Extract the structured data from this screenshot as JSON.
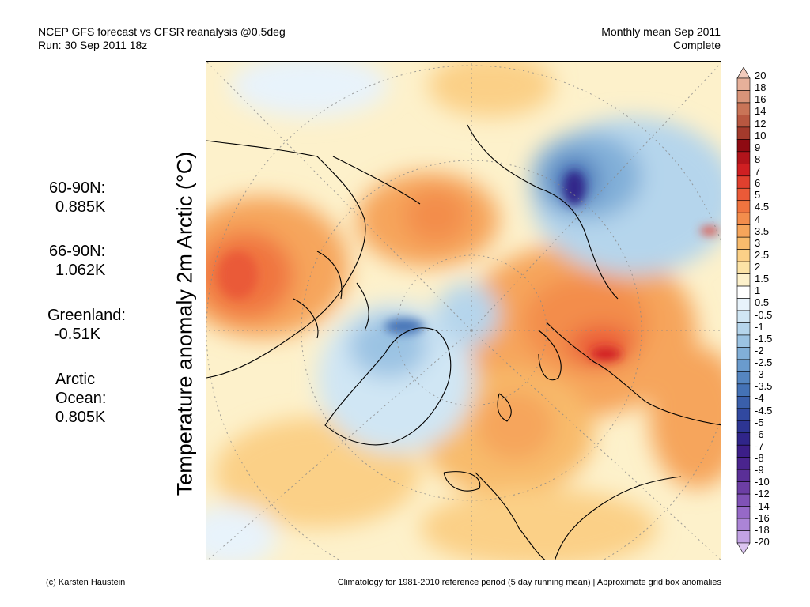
{
  "header": {
    "line1_left": "NCEP GFS forecast vs CFSR reanalysis @0.5deg",
    "line2_left": "Run: 30 Sep 2011 18z",
    "line1_right": "Monthly mean Sep 2011",
    "line2_right": "Complete"
  },
  "y_axis_label": "Temperature anomaly 2m Arctic (°C)",
  "stats": [
    {
      "label": "60-90N:",
      "value": "0.885K"
    },
    {
      "label": "66-90N:",
      "value": "1.062K"
    },
    {
      "label": "Greenland:",
      "value": "-0.51K"
    },
    {
      "label_line1": "Arctic",
      "label_line2": "Ocean:",
      "value": "0.805K"
    }
  ],
  "colorbar": {
    "labels": [
      "20",
      "18",
      "16",
      "14",
      "12",
      "10",
      "9",
      "8",
      "7",
      "6",
      "5",
      "4.5",
      "4",
      "3.5",
      "3",
      "2.5",
      "2",
      "1.5",
      "1",
      "0.5",
      "-0.5",
      "-1",
      "-1.5",
      "-2",
      "-2.5",
      "-3",
      "-3.5",
      "-4",
      "-4.5",
      "-5",
      "-6",
      "-7",
      "-8",
      "-9",
      "-10",
      "-12",
      "-14",
      "-16",
      "-18",
      "-20"
    ],
    "colors": [
      "#f2cbbc",
      "#e6b09a",
      "#d99479",
      "#c97457",
      "#b85740",
      "#a33a2c",
      "#8e0a12",
      "#b1141b",
      "#cf1f22",
      "#e0402e",
      "#ea5a38",
      "#f0743f",
      "#f38d4c",
      "#f6a55b",
      "#f8bb6c",
      "#fbd087",
      "#fce3a6",
      "#fdf1cb",
      "#ffffff",
      "#e8f3fb",
      "#d0e6f4",
      "#b5d5ec",
      "#9bc3e3",
      "#81afd8",
      "#6a9bcd",
      "#5586c1",
      "#4472b6",
      "#3a5fab",
      "#3149a0",
      "#2d3593",
      "#30258a",
      "#3c1e88",
      "#4a248e",
      "#5a2f97",
      "#6c3ea4",
      "#8052b6",
      "#9669c7",
      "#ab84d6",
      "#c2a2e4",
      "#dcc5f1"
    ]
  },
  "footer": {
    "left": "(c) Karsten Haustein",
    "right": "Climatology for 1981-2010 reference period (5 day running mean) | Approximate grid box anomalies"
  }
}
